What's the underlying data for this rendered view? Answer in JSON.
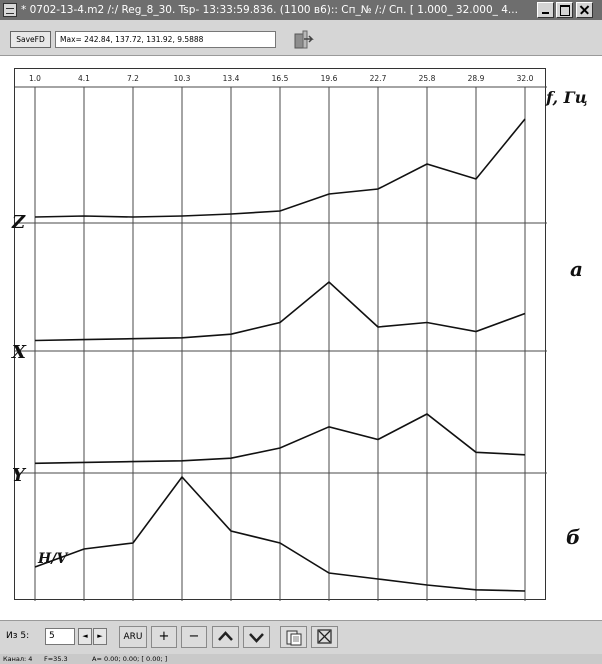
{
  "window": {
    "title": "* 0702-13-4.m2 /:/ Reg_8_30.  Tsp- 13:33:59.836. (1100 в6):: Сп_№ /:/ Сп. [   1.000_   32.000_   4..."
  },
  "toolbar": {
    "save_label": "SaveFD",
    "max_readout": "Max= 242.84, 137.72, 131.92, 9.5888"
  },
  "plot": {
    "frequency_ticks": [
      "1.0",
      "4.1",
      "7.2",
      "10.3",
      "13.4",
      "16.5",
      "19.6",
      "22.7",
      "25.8",
      "28.9",
      "32.0"
    ],
    "axis_label": "f, Гц",
    "trace_labels": [
      "Z",
      "X",
      "Y",
      "H/V"
    ],
    "panel_labels": [
      "а",
      "б"
    ],
    "trace_color": "#111111",
    "grid_color": "#4a4a4a"
  },
  "chart_data": {
    "type": "line",
    "x_unit": "Гц",
    "xlim": [
      1.0,
      32.0
    ],
    "x": [
      1.0,
      4.1,
      7.2,
      10.3,
      13.4,
      16.5,
      19.6,
      22.7,
      25.8,
      28.9,
      32.0
    ],
    "series": [
      {
        "name": "Z",
        "values": [
          0.02,
          0.03,
          0.02,
          0.03,
          0.05,
          0.08,
          0.25,
          0.3,
          0.55,
          0.4,
          1.0
        ]
      },
      {
        "name": "X",
        "values": [
          0.05,
          0.06,
          0.07,
          0.08,
          0.12,
          0.25,
          0.7,
          0.2,
          0.25,
          0.15,
          0.35
        ]
      },
      {
        "name": "Y",
        "values": [
          0.02,
          0.03,
          0.04,
          0.05,
          0.08,
          0.2,
          0.45,
          0.3,
          0.6,
          0.15,
          0.12
        ]
      },
      {
        "name": "H/V",
        "values": [
          0.25,
          0.4,
          0.45,
          1.0,
          0.55,
          0.45,
          0.2,
          0.15,
          0.1,
          0.06,
          0.05
        ]
      }
    ]
  },
  "bottom": {
    "page_label": "Из 5:",
    "page_value": "5",
    "prev_glyph": "◄",
    "next_glyph": "►",
    "aru_label": "ARU",
    "plus_label": "+",
    "minus_label": "−",
    "up_glyph": "︿",
    "down_glyph": "﹀"
  },
  "status": {
    "channel": "Канал: 4",
    "frequency": "F=35.3",
    "amplitude": "A= 0.00; 0.00; [ 0.00; ]"
  }
}
